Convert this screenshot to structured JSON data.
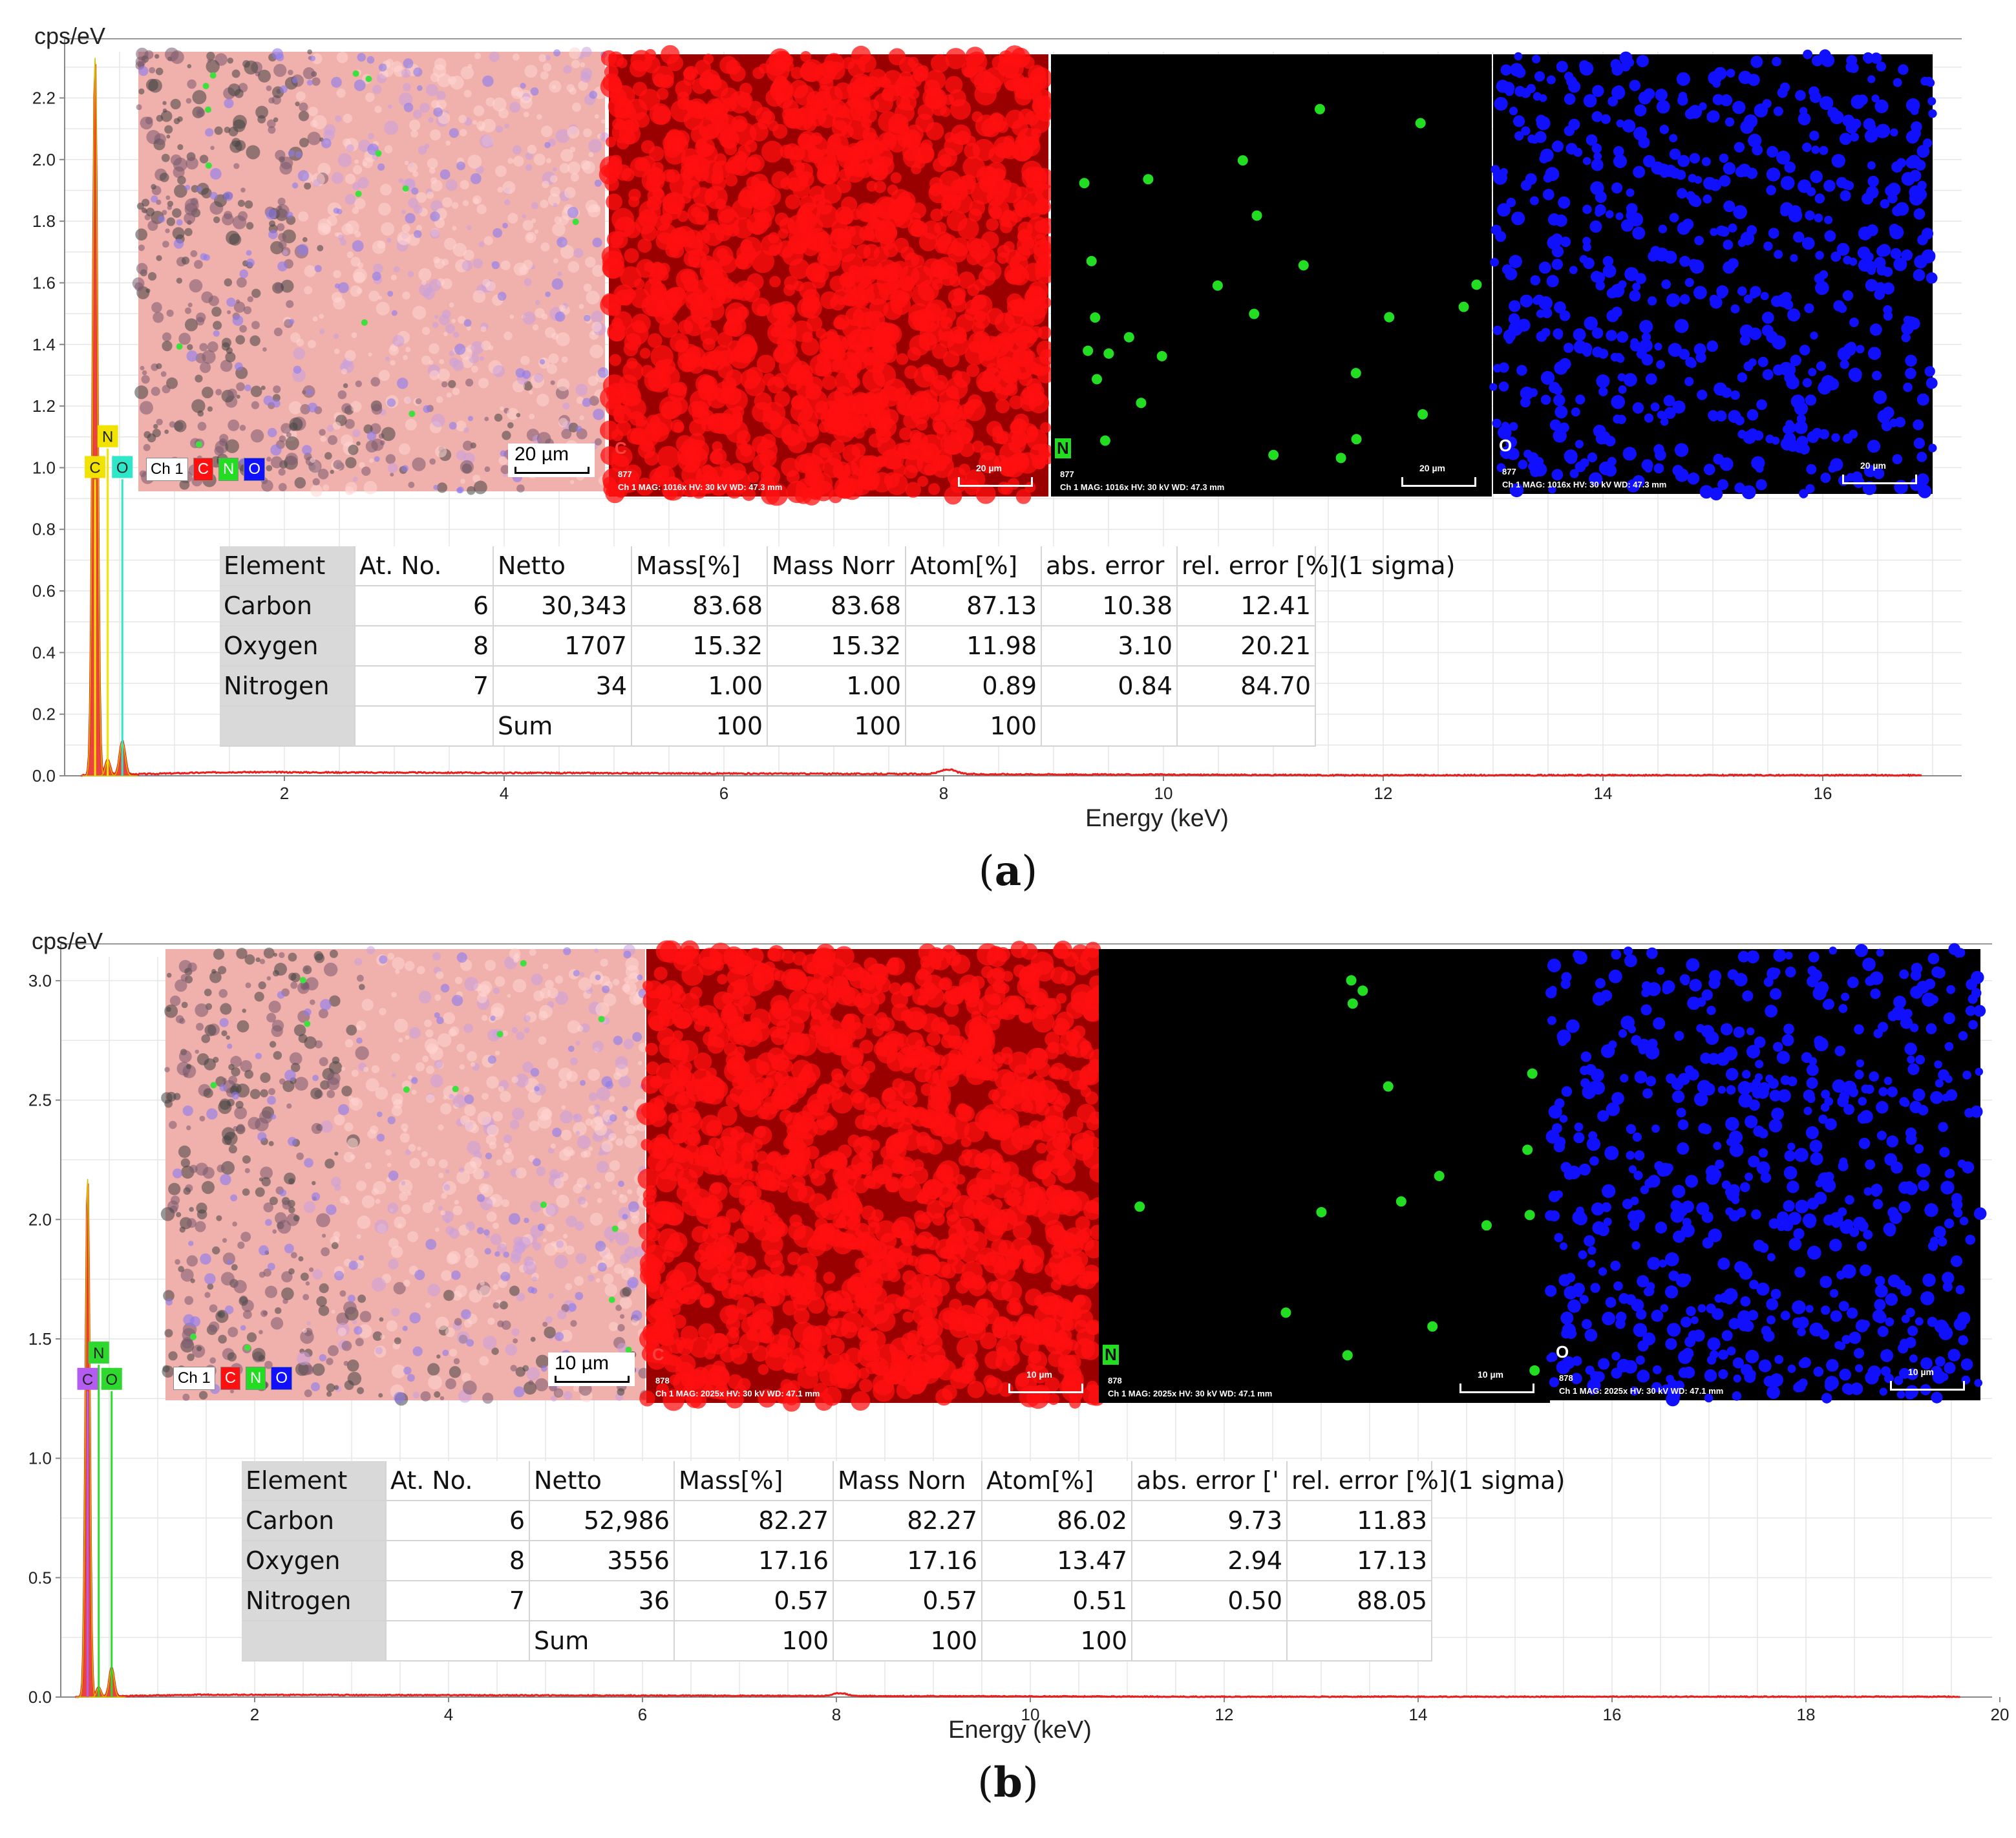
{
  "panels": [
    {
      "caption": "a",
      "chart_data": {
        "type": "line",
        "ylabel": "cps/eV",
        "xlabel": "Energy (keV)",
        "ylim": [
          0,
          2.35
        ],
        "xlim": [
          0,
          17.3
        ],
        "yticks": [
          "0.0",
          "0.2",
          "0.4",
          "0.6",
          "0.8",
          "1.0",
          "1.2",
          "1.4",
          "1.6",
          "1.8",
          "2.0",
          "2.2"
        ],
        "ytick_values": [
          0,
          0.2,
          0.4,
          0.6,
          0.8,
          1.0,
          1.2,
          1.4,
          1.6,
          1.8,
          2.0,
          2.2
        ],
        "xticks": [
          "2",
          "4",
          "6",
          "8",
          "10",
          "12",
          "14",
          "16"
        ],
        "xtick_values": [
          2,
          4,
          6,
          8,
          10,
          12,
          14,
          16
        ],
        "grid": true,
        "series": [
          {
            "color": "#e8201e",
            "peaks": [
              {
                "x": 0.277,
                "y": 2.33,
                "w": 0.03
              },
              {
                "x": 0.392,
                "y": 0.05,
                "w": 0.03
              },
              {
                "x": 0.525,
                "y": 0.11,
                "w": 0.035
              },
              {
                "x": 8.04,
                "y": 0.015,
                "w": 0.1
              }
            ],
            "background": 0.012
          }
        ],
        "element_markers": [
          {
            "label": "C",
            "x": 0.277,
            "y": 1.0,
            "color": "#f2e200"
          },
          {
            "label": "N",
            "x": 0.392,
            "y": 1.1,
            "color": "#f2e200"
          },
          {
            "label": "O",
            "x": 0.525,
            "y": 1.0,
            "color": "#2ee6c8"
          }
        ]
      },
      "map_tiles": [
        {
          "name": "overlay",
          "label": "",
          "scale": "20 µm",
          "meta": "",
          "legend": [
            "Ch 1",
            "C",
            "N",
            "O"
          ]
        },
        {
          "name": "carbon",
          "label": "C",
          "scale": "20 µm",
          "meta": "Ch 1    MAG: 1016x    HV: 30 kV    WD: 47.3 mm",
          "id": "877"
        },
        {
          "name": "nitrogen",
          "label": "N",
          "scale": "20 µm",
          "meta": "Ch 1    MAG: 1016x    HV: 30 kV    WD: 47.3 mm",
          "id": "877"
        },
        {
          "name": "oxygen",
          "label": "O",
          "scale": "20 µm",
          "meta": "Ch 1    MAG: 1016x    HV: 30 kV    WD: 47.3 mm",
          "id": "877"
        }
      ],
      "table": {
        "headers": [
          "Element",
          "At. No.",
          "Netto",
          "Mass[%]",
          "Mass Norr",
          "Atom[%]",
          "abs. error",
          "rel. error [%](1 sigma)"
        ],
        "rows": [
          [
            "Carbon",
            "6",
            "30,343",
            "83.68",
            "83.68",
            "87.13",
            "10.38",
            "12.41"
          ],
          [
            "Oxygen",
            "8",
            "1707",
            "15.32",
            "15.32",
            "11.98",
            "3.10",
            "20.21"
          ],
          [
            "Nitrogen",
            "7",
            "34",
            "1.00",
            "1.00",
            "0.89",
            "0.84",
            "84.70"
          ],
          [
            "",
            "",
            "Sum",
            "100",
            "100",
            "100",
            "",
            ""
          ]
        ]
      }
    },
    {
      "caption": "b",
      "chart_data": {
        "type": "line",
        "ylabel": "cps/eV",
        "xlabel": "Energy (keV)",
        "ylim": [
          0,
          3.1
        ],
        "xlim": [
          0,
          20
        ],
        "yticks": [
          "0.0",
          "0.5",
          "1.0",
          "1.5",
          "2.0",
          "2.5",
          "3.0"
        ],
        "ytick_values": [
          0,
          0.5,
          1.0,
          1.5,
          2.0,
          2.5,
          3.0
        ],
        "xticks": [
          "2",
          "4",
          "6",
          "8",
          "10",
          "12",
          "14",
          "16",
          "18",
          "20"
        ],
        "xtick_values": [
          2,
          4,
          6,
          8,
          10,
          12,
          14,
          16,
          18,
          20
        ],
        "grid": true,
        "series": [
          {
            "color": "#e8201e",
            "peaks": [
              {
                "x": 0.277,
                "y": 2.17,
                "w": 0.03
              },
              {
                "x": 0.392,
                "y": 0.04,
                "w": 0.03
              },
              {
                "x": 0.525,
                "y": 0.12,
                "w": 0.035
              },
              {
                "x": 8.04,
                "y": 0.012,
                "w": 0.1
              }
            ],
            "background": 0.01
          }
        ],
        "element_markers": [
          {
            "label": "C",
            "x": 0.277,
            "y": 1.33,
            "color": "#b45cf0"
          },
          {
            "label": "N",
            "x": 0.392,
            "y": 1.44,
            "color": "#2ed82e"
          },
          {
            "label": "O",
            "x": 0.525,
            "y": 1.33,
            "color": "#2ed82e"
          }
        ]
      },
      "map_tiles": [
        {
          "name": "overlay",
          "label": "",
          "scale": "10 µm",
          "meta": "",
          "legend": [
            "Ch 1",
            "C",
            "N",
            "O"
          ]
        },
        {
          "name": "carbon",
          "label": "C",
          "scale": "10 µm",
          "meta": "Ch 1    MAG: 2025x    HV: 30 kV    WD: 47.1 mm",
          "id": "878"
        },
        {
          "name": "nitrogen",
          "label": "N",
          "scale": "10 µm",
          "meta": "Ch 1    MAG: 2025x    HV: 30 kV    WD: 47.1 mm",
          "id": "878"
        },
        {
          "name": "oxygen",
          "label": "O",
          "scale": "10 µm",
          "meta": "Ch 1    MAG: 2025x    HV: 30 kV    WD: 47.1 mm",
          "id": "878"
        }
      ],
      "table": {
        "headers": [
          "Element",
          "At. No.",
          "Netto",
          "Mass[%]",
          "Mass Norn",
          "Atom[%]",
          "abs. error ['",
          "rel. error [%](1 sigma)"
        ],
        "rows": [
          [
            "Carbon",
            "6",
            "52,986",
            "82.27",
            "82.27",
            "86.02",
            "9.73",
            "11.83"
          ],
          [
            "Oxygen",
            "8",
            "3556",
            "17.16",
            "17.16",
            "13.47",
            "2.94",
            "17.13"
          ],
          [
            "Nitrogen",
            "7",
            "36",
            "0.57",
            "0.57",
            "0.51",
            "0.50",
            "88.05"
          ],
          [
            "",
            "",
            "Sum",
            "100",
            "100",
            "100",
            "",
            ""
          ]
        ]
      }
    }
  ],
  "colors": {
    "spectrum": "#e8201e",
    "carbon": "#ff1010",
    "nitrogen": "#22dd22",
    "oxygen": "#1010ff",
    "grid": "#e6e6e6"
  }
}
